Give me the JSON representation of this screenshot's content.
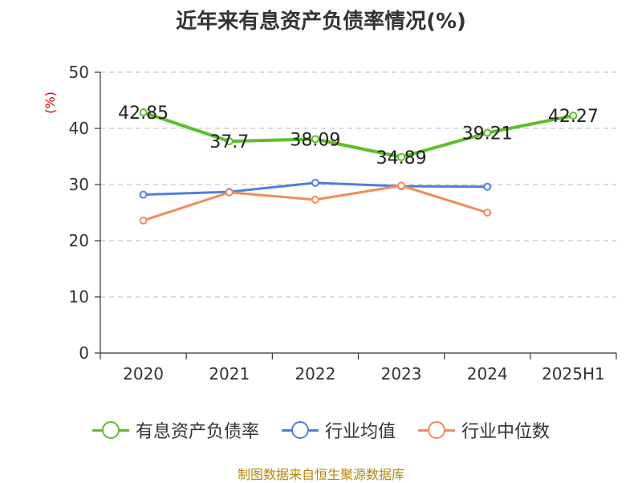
{
  "title": "近年来有息资产负债率情况(%)",
  "source": "制图数据来自恒生聚源数据库",
  "chart_data": {
    "type": "line",
    "categories": [
      "2020",
      "2021",
      "2022",
      "2023",
      "2024",
      "2025H1"
    ],
    "ylabel": "(%)",
    "ylim": [
      0,
      50
    ],
    "yticks": [
      "0",
      "10",
      "20",
      "30",
      "40",
      "50"
    ],
    "grid": true,
    "legend_position": "bottom",
    "series": [
      {
        "name": "有息资产负债率",
        "color": "#5dbe2b",
        "values": [
          42.85,
          37.7,
          38.09,
          34.89,
          39.21,
          42.27
        ],
        "labels": [
          "42.85",
          "37.7",
          "38.09",
          "34.89",
          "39.21",
          "42.27"
        ]
      },
      {
        "name": "行业均值",
        "color": "#4e7fe0",
        "values": [
          28.2,
          28.7,
          30.3,
          29.7,
          29.6,
          null
        ]
      },
      {
        "name": "行业中位数",
        "color": "#f08b5b",
        "values": [
          23.6,
          28.6,
          27.3,
          29.8,
          25.0,
          null
        ]
      }
    ]
  }
}
